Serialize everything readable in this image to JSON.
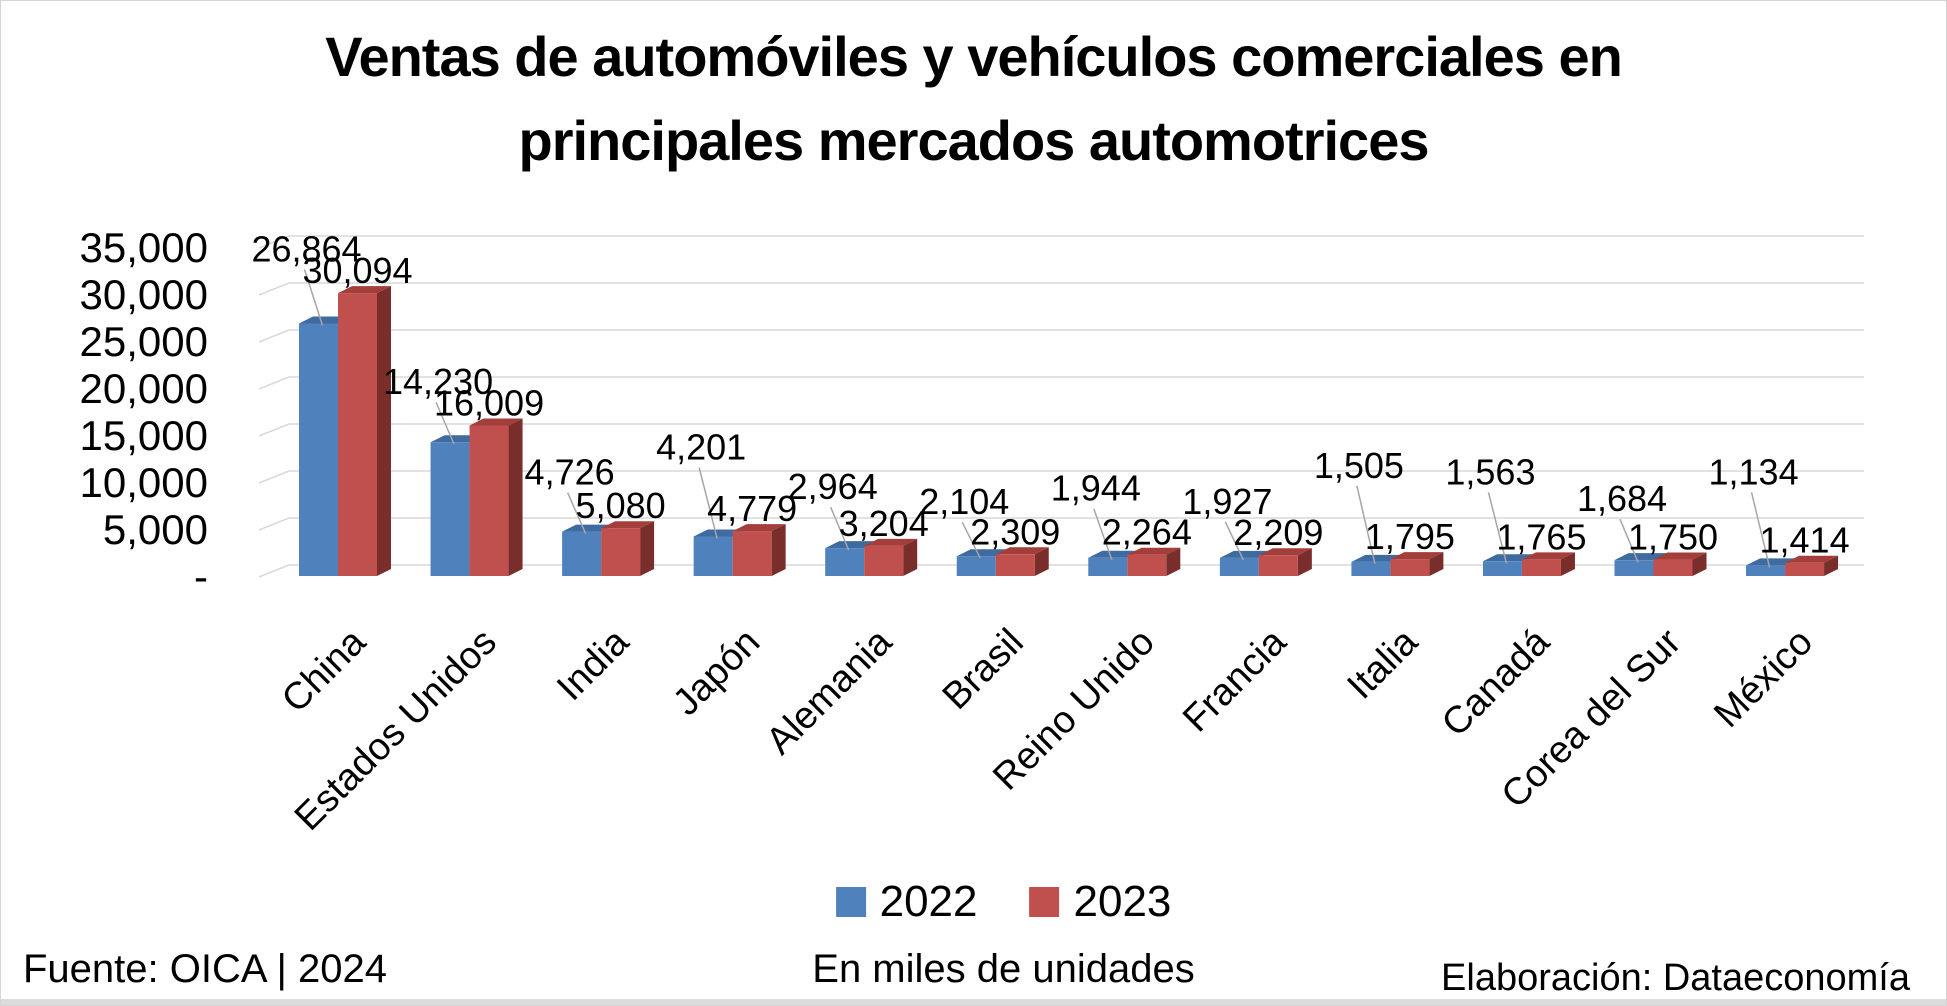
{
  "chart_data": {
    "type": "bar",
    "style": "3d-clustered-column",
    "title": "Ventas de automóviles y vehículos comerciales en principales mercados automotrices",
    "title_lines": [
      "Ventas de automóviles y vehículos comerciales en",
      "principales mercados automotrices"
    ],
    "categories": [
      "China",
      "Estados Unidos",
      "India",
      "Japón",
      "Alemania",
      "Brasil",
      "Reino Unido",
      "Francia",
      "Italia",
      "Canadá",
      "Corea del Sur",
      "México"
    ],
    "series": [
      {
        "name": "2022",
        "color": "#4F81BD",
        "color_top": "#3E6CA1",
        "values": [
          26864,
          14230,
          4726,
          4201,
          2964,
          2104,
          1944,
          1927,
          1505,
          1563,
          1684,
          1134
        ]
      },
      {
        "name": "2023",
        "color": "#C0504D",
        "color_top": "#A33E3B",
        "color_side": "#7A2E2C",
        "values": [
          30094,
          16009,
          5080,
          4779,
          3204,
          2309,
          2264,
          2209,
          1795,
          1765,
          1750,
          1414
        ]
      }
    ],
    "ylim": [
      0,
      35000
    ],
    "ytick_step": 5000,
    "ytick_labels": [
      "-",
      "5,000",
      "10,000",
      "15,000",
      "20,000",
      "25,000",
      "30,000",
      "35,000"
    ],
    "grid": true,
    "gridline_color": "#D9D9D9",
    "leader_line_color": "#A6A6A6",
    "legend_position": "bottom",
    "data_labels": true
  },
  "footer": {
    "source": "Fuente: OICA | 2024",
    "units": "En miles de unidades",
    "credit": "Elaboración: Dataeconomía"
  }
}
